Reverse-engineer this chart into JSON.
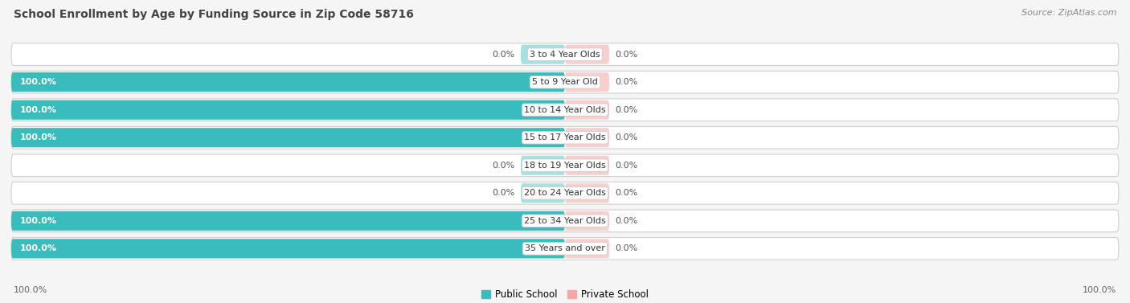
{
  "title": "School Enrollment by Age by Funding Source in Zip Code 58716",
  "source": "Source: ZipAtlas.com",
  "categories": [
    "3 to 4 Year Olds",
    "5 to 9 Year Old",
    "10 to 14 Year Olds",
    "15 to 17 Year Olds",
    "18 to 19 Year Olds",
    "20 to 24 Year Olds",
    "25 to 34 Year Olds",
    "35 Years and over"
  ],
  "public_values": [
    0.0,
    100.0,
    100.0,
    100.0,
    0.0,
    0.0,
    100.0,
    100.0
  ],
  "private_values": [
    0.0,
    0.0,
    0.0,
    0.0,
    0.0,
    0.0,
    0.0,
    0.0
  ],
  "public_color": "#3BBCBC",
  "private_color": "#F4A8A8",
  "bg_color": "#f5f5f5",
  "row_bg_color": "#e8e8e8",
  "row_white_color": "#f9f9f9",
  "title_fontsize": 10,
  "source_fontsize": 8,
  "label_fontsize": 8,
  "legend_fontsize": 8.5,
  "axis_label_left": "100.0%",
  "axis_label_right": "100.0%",
  "x_min": -100,
  "x_max": 100,
  "stub_size": 8
}
